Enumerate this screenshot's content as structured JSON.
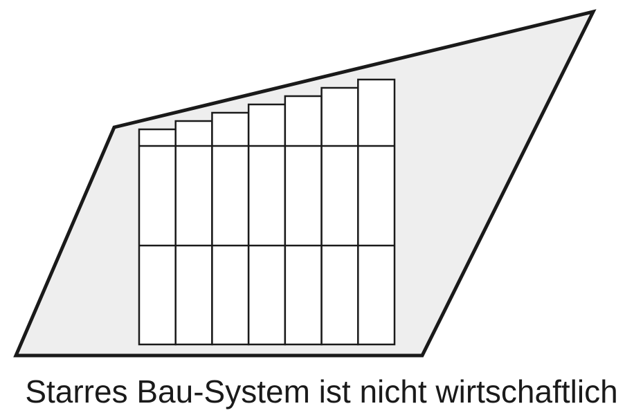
{
  "diagram": {
    "caption": "Starres Bau-System ist nicht wirtschaftlich",
    "colors": {
      "stroke": "#1a1a1a",
      "area_fill": "#eeeeee",
      "panel_fill": "#ffffff",
      "background": "#ffffff"
    },
    "elements": {
      "area": "irregular-roof-surface",
      "panels": "rigid-module-columns",
      "column_count": 7,
      "rows_per_column": 3
    }
  }
}
